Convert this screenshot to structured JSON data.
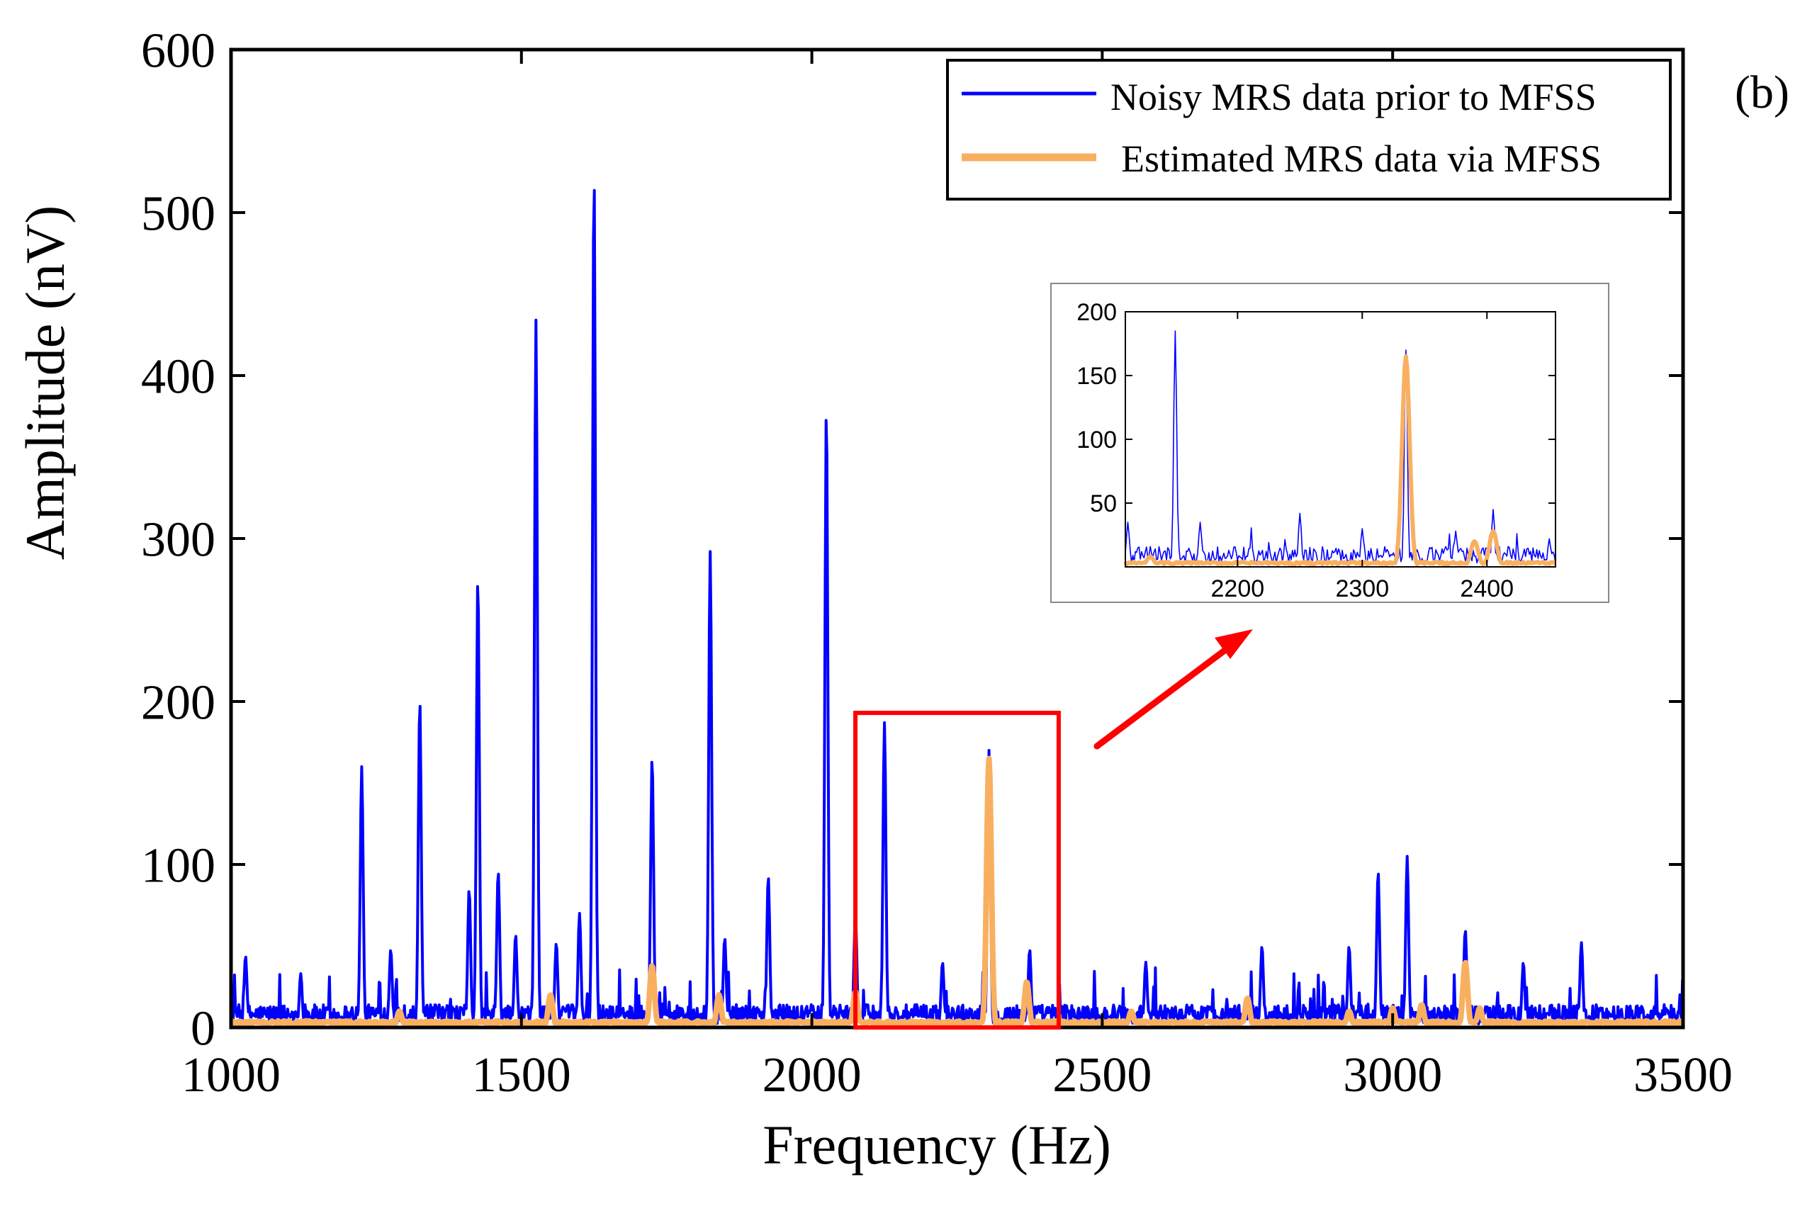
{
  "panel_label": "(b)",
  "colors": {
    "noisy": "#0000ff",
    "estimated": "#f8b060",
    "zoom": "#ff0000",
    "axes": "#000000"
  },
  "chart_data": [
    {
      "id": "main",
      "type": "line",
      "xlabel": "Frequency (Hz)",
      "ylabel": "Amplitude (nV)",
      "xlim": [
        1000,
        3500
      ],
      "ylim": [
        0,
        600
      ],
      "xticks": [
        1000,
        1500,
        2000,
        2500,
        3000,
        3500
      ],
      "yticks": [
        0,
        100,
        200,
        300,
        400,
        500,
        600
      ],
      "legend": {
        "placement": "top-right",
        "entries": [
          "Noisy MRS data prior to MFSS",
          "Estimated MRS data via MFSS"
        ]
      },
      "series": [
        {
          "name": "Noisy MRS data prior to MFSS",
          "baseline_approx": 8,
          "peaks": [
            {
              "x": 1025,
              "y": 44
            },
            {
              "x": 1120,
              "y": 33
            },
            {
              "x": 1225,
              "y": 160
            },
            {
              "x": 1275,
              "y": 48
            },
            {
              "x": 1325,
              "y": 201
            },
            {
              "x": 1410,
              "y": 85
            },
            {
              "x": 1425,
              "y": 276
            },
            {
              "x": 1460,
              "y": 96
            },
            {
              "x": 1490,
              "y": 57
            },
            {
              "x": 1525,
              "y": 434
            },
            {
              "x": 1560,
              "y": 52
            },
            {
              "x": 1600,
              "y": 70
            },
            {
              "x": 1625,
              "y": 524
            },
            {
              "x": 1725,
              "y": 166
            },
            {
              "x": 1825,
              "y": 292
            },
            {
              "x": 1850,
              "y": 55
            },
            {
              "x": 1925,
              "y": 93
            },
            {
              "x": 2025,
              "y": 380
            },
            {
              "x": 2075,
              "y": 70
            },
            {
              "x": 2125,
              "y": 187
            },
            {
              "x": 2225,
              "y": 40
            },
            {
              "x": 2305,
              "y": 170
            },
            {
              "x": 2375,
              "y": 48
            },
            {
              "x": 2575,
              "y": 40
            },
            {
              "x": 2775,
              "y": 50
            },
            {
              "x": 2925,
              "y": 50
            },
            {
              "x": 2975,
              "y": 96
            },
            {
              "x": 3025,
              "y": 105
            },
            {
              "x": 3125,
              "y": 60
            },
            {
              "x": 3225,
              "y": 40
            },
            {
              "x": 3325,
              "y": 52
            }
          ]
        },
        {
          "name": "Estimated MRS data via MFSS",
          "baseline_approx": 2,
          "peaks": [
            {
              "x": 1290,
              "y": 10
            },
            {
              "x": 1550,
              "y": 20
            },
            {
              "x": 1725,
              "y": 38
            },
            {
              "x": 1840,
              "y": 20
            },
            {
              "x": 2075,
              "y": 22
            },
            {
              "x": 2305,
              "y": 165
            },
            {
              "x": 2370,
              "y": 28
            },
            {
              "x": 2550,
              "y": 10
            },
            {
              "x": 2750,
              "y": 18
            },
            {
              "x": 2925,
              "y": 10
            },
            {
              "x": 3000,
              "y": 12
            },
            {
              "x": 3050,
              "y": 14
            },
            {
              "x": 3125,
              "y": 40
            },
            {
              "x": 3150,
              "y": 12
            }
          ]
        }
      ],
      "annotations": [
        {
          "type": "zoom-box",
          "x_range": [
            2075,
            2425
          ],
          "y_range": [
            0,
            193
          ]
        },
        {
          "type": "arrow",
          "from_box_to": "inset"
        }
      ]
    },
    {
      "id": "inset",
      "type": "line",
      "xlim": [
        2110,
        2455
      ],
      "ylim": [
        0,
        200
      ],
      "xticks": [
        2200,
        2300,
        2400
      ],
      "yticks": [
        50,
        100,
        150,
        200
      ],
      "series": [
        {
          "name": "Noisy MRS data prior to MFSS",
          "peaks": [
            {
              "x": 2112,
              "y": 35
            },
            {
              "x": 2150,
              "y": 185
            },
            {
              "x": 2170,
              "y": 35
            },
            {
              "x": 2250,
              "y": 42
            },
            {
              "x": 2300,
              "y": 30
            },
            {
              "x": 2335,
              "y": 170
            },
            {
              "x": 2375,
              "y": 28
            },
            {
              "x": 2405,
              "y": 45
            },
            {
              "x": 2450,
              "y": 22
            }
          ]
        },
        {
          "name": "Estimated MRS data via MFSS",
          "peaks": [
            {
              "x": 2130,
              "y": 8
            },
            {
              "x": 2335,
              "y": 165
            },
            {
              "x": 2390,
              "y": 20
            },
            {
              "x": 2405,
              "y": 28
            }
          ]
        }
      ]
    }
  ]
}
